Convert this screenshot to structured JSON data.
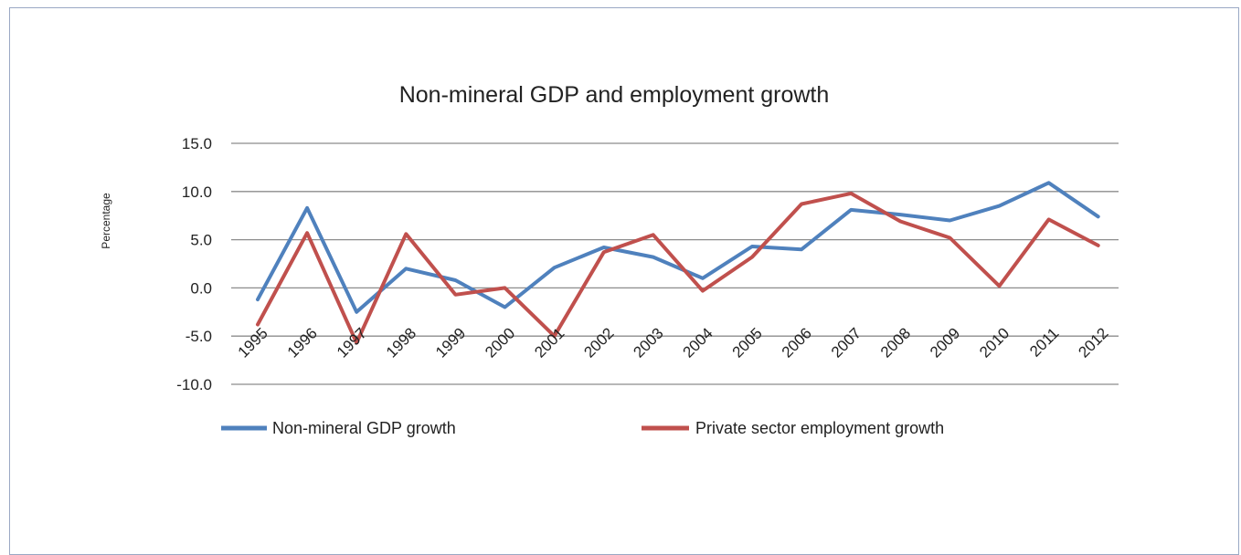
{
  "chart_data": {
    "type": "line",
    "title": "Non-mineral GDP and employment growth",
    "xlabel": "",
    "ylabel": "Percentage",
    "categories": [
      "1995",
      "1996",
      "1997",
      "1998",
      "1999",
      "2000",
      "2001",
      "2002",
      "2003",
      "2004",
      "2005",
      "2006",
      "2007",
      "2008",
      "2009",
      "2010",
      "2011",
      "2012"
    ],
    "ylim": [
      -10,
      15
    ],
    "yticks": [
      "15.0",
      "10.0",
      "5.0",
      "0.0",
      "-5.0",
      "-10.0"
    ],
    "grid": true,
    "legend_position": "bottom",
    "series": [
      {
        "name": "Non-mineral GDP growth",
        "color": "#4f81bd",
        "values": [
          -1.2,
          8.3,
          -2.5,
          2.0,
          0.8,
          -2.0,
          2.1,
          4.2,
          3.2,
          1.0,
          4.3,
          4.0,
          8.1,
          7.6,
          7.0,
          8.5,
          10.9,
          7.4
        ]
      },
      {
        "name": "Private sector employment growth",
        "color": "#c0504d",
        "values": [
          -3.8,
          5.7,
          -5.7,
          5.6,
          -0.7,
          0.0,
          -5.0,
          3.7,
          5.5,
          -0.3,
          3.2,
          8.7,
          9.8,
          6.9,
          5.2,
          0.2,
          7.1,
          4.4
        ]
      }
    ]
  }
}
